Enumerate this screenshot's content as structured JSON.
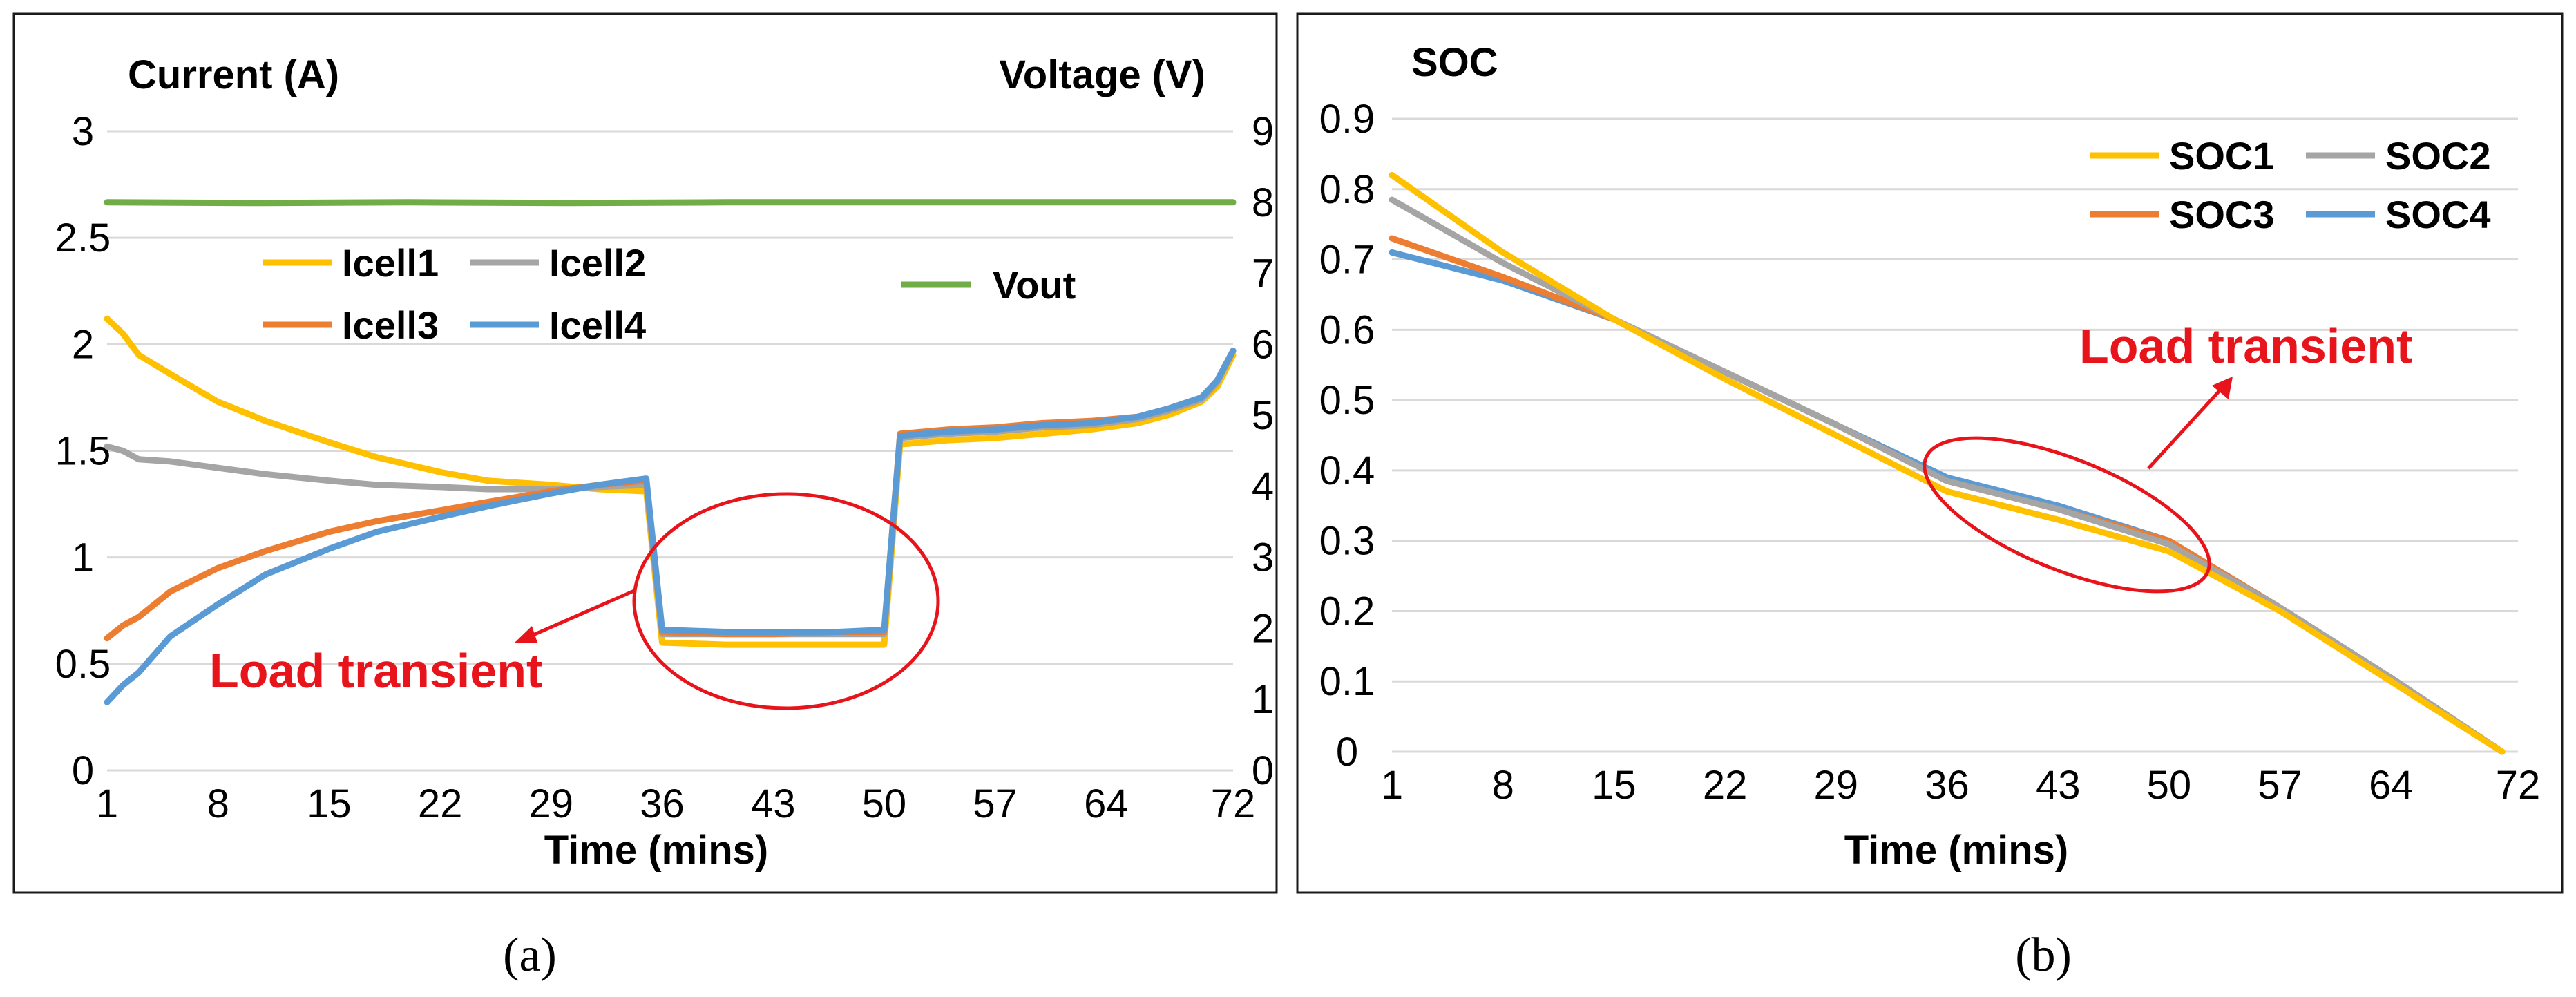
{
  "chart_data": [
    {
      "type": "line",
      "panel_label": "(a)",
      "xlabel": "Time (mins)",
      "ylabel_left": "Current (A)",
      "ylabel_right": "Voltage (V)",
      "x_ticks": [
        "1",
        "8",
        "15",
        "22",
        "29",
        "36",
        "43",
        "50",
        "57",
        "64",
        "72"
      ],
      "x_range": [
        1,
        72
      ],
      "y_left_ticks": [
        "0",
        "0.5",
        "1",
        "1.5",
        "2",
        "2.5",
        "3"
      ],
      "y_left_range": [
        0,
        3
      ],
      "y_right_ticks": [
        "0",
        "1",
        "2",
        "3",
        "4",
        "5",
        "6",
        "7",
        "8",
        "9"
      ],
      "y_right_range": [
        0,
        9
      ],
      "grid": true,
      "legend": [
        "Icell1",
        "Icell2",
        "Icell3",
        "Icell4",
        "Vout"
      ],
      "annotation": "Load transient",
      "series": [
        {
          "name": "Icell1",
          "axis": "left",
          "color": "#ffc000",
          "points": [
            [
              1,
              2.12
            ],
            [
              2,
              2.05
            ],
            [
              3,
              1.95
            ],
            [
              5,
              1.86
            ],
            [
              8,
              1.73
            ],
            [
              11,
              1.64
            ],
            [
              15,
              1.54
            ],
            [
              18,
              1.47
            ],
            [
              22,
              1.4
            ],
            [
              25,
              1.36
            ],
            [
              29,
              1.34
            ],
            [
              32,
              1.32
            ],
            [
              35,
              1.31
            ],
            [
              36,
              0.6
            ],
            [
              40,
              0.59
            ],
            [
              43,
              0.59
            ],
            [
              47,
              0.59
            ],
            [
              50,
              0.59
            ],
            [
              51,
              1.53
            ],
            [
              54,
              1.55
            ],
            [
              57,
              1.56
            ],
            [
              60,
              1.58
            ],
            [
              63,
              1.6
            ],
            [
              66,
              1.63
            ],
            [
              68,
              1.67
            ],
            [
              70,
              1.73
            ],
            [
              71,
              1.8
            ],
            [
              72,
              1.95
            ]
          ]
        },
        {
          "name": "Icell2",
          "axis": "left",
          "color": "#a5a5a5",
          "points": [
            [
              1,
              1.52
            ],
            [
              2,
              1.5
            ],
            [
              3,
              1.46
            ],
            [
              5,
              1.45
            ],
            [
              8,
              1.42
            ],
            [
              11,
              1.39
            ],
            [
              15,
              1.36
            ],
            [
              18,
              1.34
            ],
            [
              22,
              1.33
            ],
            [
              25,
              1.32
            ],
            [
              29,
              1.32
            ],
            [
              32,
              1.33
            ],
            [
              35,
              1.34
            ],
            [
              36,
              0.64
            ],
            [
              40,
              0.64
            ],
            [
              43,
              0.64
            ],
            [
              47,
              0.64
            ],
            [
              50,
              0.64
            ],
            [
              51,
              1.56
            ],
            [
              54,
              1.58
            ],
            [
              57,
              1.59
            ],
            [
              60,
              1.61
            ],
            [
              63,
              1.62
            ],
            [
              66,
              1.65
            ],
            [
              68,
              1.69
            ],
            [
              70,
              1.74
            ],
            [
              71,
              1.82
            ],
            [
              72,
              1.97
            ]
          ]
        },
        {
          "name": "Icell3",
          "axis": "left",
          "color": "#ed7d31",
          "points": [
            [
              1,
              0.62
            ],
            [
              2,
              0.68
            ],
            [
              3,
              0.72
            ],
            [
              5,
              0.84
            ],
            [
              8,
              0.95
            ],
            [
              11,
              1.03
            ],
            [
              15,
              1.12
            ],
            [
              18,
              1.17
            ],
            [
              22,
              1.22
            ],
            [
              25,
              1.26
            ],
            [
              29,
              1.31
            ],
            [
              32,
              1.34
            ],
            [
              35,
              1.36
            ],
            [
              36,
              0.65
            ],
            [
              40,
              0.64
            ],
            [
              43,
              0.64
            ],
            [
              47,
              0.65
            ],
            [
              50,
              0.65
            ],
            [
              51,
              1.58
            ],
            [
              54,
              1.6
            ],
            [
              57,
              1.61
            ],
            [
              60,
              1.63
            ],
            [
              63,
              1.64
            ],
            [
              66,
              1.66
            ],
            [
              68,
              1.7
            ],
            [
              70,
              1.75
            ],
            [
              71,
              1.83
            ],
            [
              72,
              1.97
            ]
          ]
        },
        {
          "name": "Icell4",
          "axis": "left",
          "color": "#5b9bd5",
          "points": [
            [
              1,
              0.32
            ],
            [
              2,
              0.4
            ],
            [
              3,
              0.46
            ],
            [
              5,
              0.63
            ],
            [
              8,
              0.78
            ],
            [
              11,
              0.92
            ],
            [
              15,
              1.04
            ],
            [
              18,
              1.12
            ],
            [
              22,
              1.19
            ],
            [
              25,
              1.24
            ],
            [
              29,
              1.3
            ],
            [
              32,
              1.34
            ],
            [
              35,
              1.37
            ],
            [
              36,
              0.66
            ],
            [
              40,
              0.65
            ],
            [
              43,
              0.65
            ],
            [
              47,
              0.65
            ],
            [
              50,
              0.66
            ],
            [
              51,
              1.57
            ],
            [
              54,
              1.59
            ],
            [
              57,
              1.6
            ],
            [
              60,
              1.62
            ],
            [
              63,
              1.63
            ],
            [
              66,
              1.66
            ],
            [
              68,
              1.7
            ],
            [
              70,
              1.75
            ],
            [
              71,
              1.83
            ],
            [
              72,
              1.97
            ]
          ]
        },
        {
          "name": "Vout",
          "axis": "right",
          "color": "#70ad47",
          "points": [
            [
              1,
              8.0
            ],
            [
              10,
              7.99
            ],
            [
              20,
              8.0
            ],
            [
              30,
              7.99
            ],
            [
              40,
              8.0
            ],
            [
              50,
              8.0
            ],
            [
              60,
              8.0
            ],
            [
              72,
              8.0
            ]
          ]
        }
      ]
    },
    {
      "type": "line",
      "panel_label": "(b)",
      "xlabel": "Time (mins)",
      "ylabel": "SOC",
      "x_ticks": [
        "1",
        "8",
        "15",
        "22",
        "29",
        "36",
        "43",
        "50",
        "57",
        "64",
        "72"
      ],
      "x_range": [
        1,
        72
      ],
      "y_ticks": [
        "0",
        "0.1",
        "0.2",
        "0.3",
        "0.4",
        "0.5",
        "0.6",
        "0.7",
        "0.8",
        "0.9"
      ],
      "y_range": [
        0,
        0.9
      ],
      "grid": true,
      "legend": [
        "SOC1",
        "SOC2",
        "SOC3",
        "SOC4"
      ],
      "annotation": "Load transient",
      "series": [
        {
          "name": "SOC1",
          "color": "#ffc000",
          "points": [
            [
              1,
              0.82
            ],
            [
              8,
              0.71
            ],
            [
              15,
              0.615
            ],
            [
              22,
              0.53
            ],
            [
              29,
              0.45
            ],
            [
              36,
              0.37
            ],
            [
              43,
              0.33
            ],
            [
              50,
              0.285
            ],
            [
              57,
              0.2
            ],
            [
              64,
              0.1
            ],
            [
              71,
              0.0
            ]
          ]
        },
        {
          "name": "SOC2",
          "color": "#a5a5a5",
          "points": [
            [
              1,
              0.785
            ],
            [
              8,
              0.695
            ],
            [
              15,
              0.615
            ],
            [
              22,
              0.54
            ],
            [
              29,
              0.465
            ],
            [
              36,
              0.385
            ],
            [
              43,
              0.345
            ],
            [
              50,
              0.295
            ],
            [
              57,
              0.205
            ],
            [
              64,
              0.105
            ],
            [
              71,
              0.0
            ]
          ]
        },
        {
          "name": "SOC3",
          "color": "#ed7d31",
          "points": [
            [
              1,
              0.73
            ],
            [
              8,
              0.675
            ],
            [
              15,
              0.615
            ],
            [
              22,
              0.54
            ],
            [
              29,
              0.465
            ],
            [
              36,
              0.385
            ],
            [
              43,
              0.345
            ],
            [
              50,
              0.3
            ],
            [
              57,
              0.205
            ],
            [
              64,
              0.105
            ],
            [
              71,
              0.0
            ]
          ]
        },
        {
          "name": "SOC4",
          "color": "#5b9bd5",
          "points": [
            [
              1,
              0.71
            ],
            [
              8,
              0.67
            ],
            [
              15,
              0.615
            ],
            [
              22,
              0.54
            ],
            [
              29,
              0.465
            ],
            [
              36,
              0.39
            ],
            [
              43,
              0.35
            ],
            [
              50,
              0.3
            ],
            [
              57,
              0.205
            ],
            [
              64,
              0.105
            ],
            [
              71,
              0.0
            ]
          ]
        }
      ]
    }
  ]
}
